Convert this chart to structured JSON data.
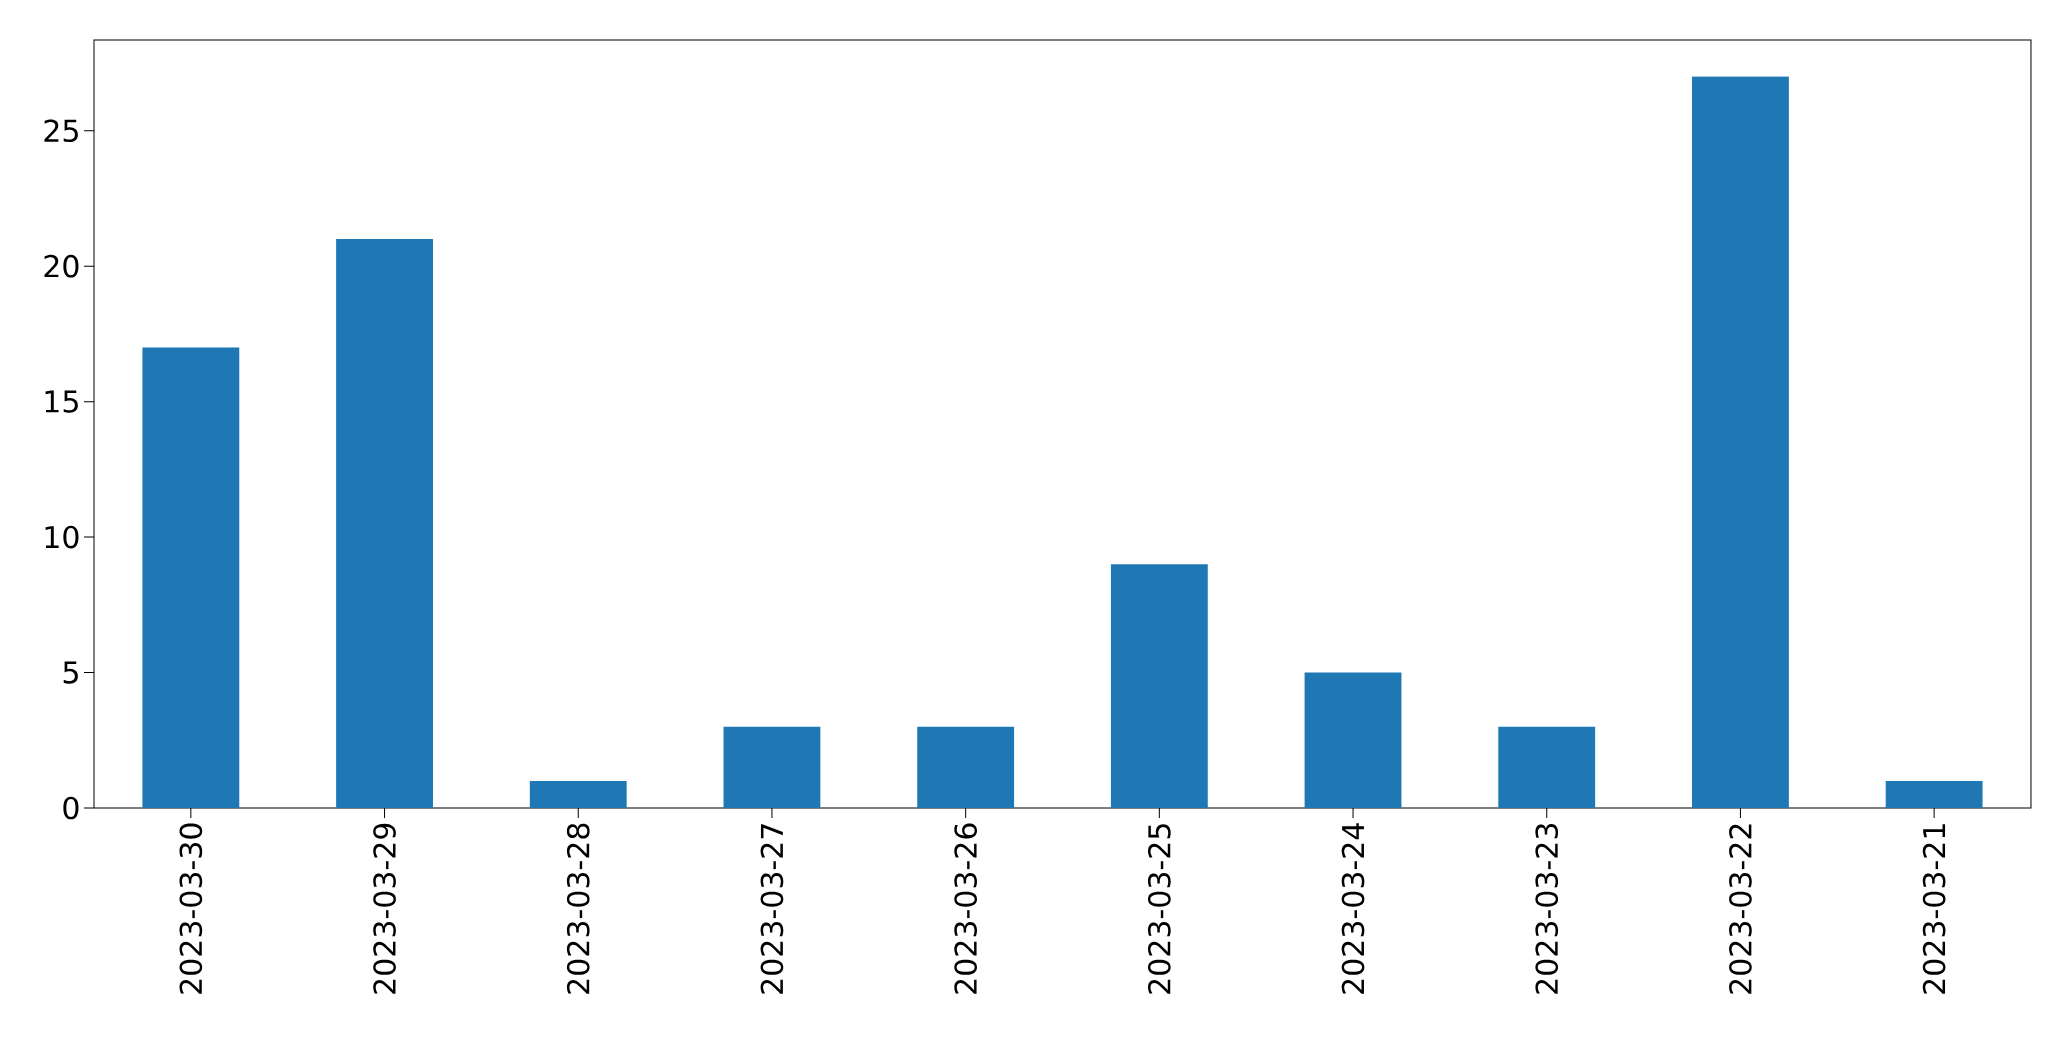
{
  "chart_data": {
    "type": "bar",
    "categories": [
      "2023-03-30",
      "2023-03-29",
      "2023-03-28",
      "2023-03-27",
      "2023-03-26",
      "2023-03-25",
      "2023-03-24",
      "2023-03-23",
      "2023-03-22",
      "2023-03-21"
    ],
    "values": [
      17,
      21,
      1,
      3,
      3,
      9,
      5,
      3,
      27,
      1
    ],
    "color": "#1f77b4",
    "ylim": [
      0,
      28.35
    ],
    "yticks": [
      0,
      5,
      10,
      15,
      20,
      25
    ]
  }
}
